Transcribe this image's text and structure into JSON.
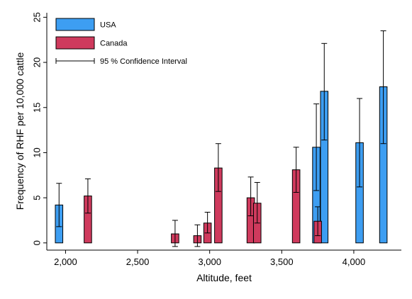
{
  "chart_data": {
    "type": "bar",
    "xlabel": "Altitude, feet",
    "ylabel": "Frequency of RHF per 10,000 cattle",
    "xlim": [
      1870,
      4330
    ],
    "ylim": [
      -0.8,
      25.5
    ],
    "xticks": [
      2000,
      2500,
      3000,
      3500,
      4000
    ],
    "xtick_labels": [
      "2,000",
      "2,500",
      "3,000",
      "3,500",
      "4,000"
    ],
    "yticks": [
      0,
      5,
      10,
      15,
      20,
      25
    ],
    "ytick_labels": [
      "0",
      "5",
      "10",
      "15",
      "20",
      "25"
    ],
    "bar_width": 52,
    "legend": {
      "placement": "top-left",
      "entries": [
        "USA",
        "Canada",
        "95 % Confidence Interval"
      ]
    },
    "series": [
      {
        "name": "USA",
        "color": "#3d9ef2",
        "points": [
          {
            "x": 1955,
            "value": 4.2,
            "ci": [
              1.8,
              6.6
            ]
          },
          {
            "x": 3740,
            "value": 10.6,
            "ci": [
              5.8,
              15.4
            ]
          },
          {
            "x": 3795,
            "value": 16.8,
            "ci": [
              11.4,
              22.1
            ]
          },
          {
            "x": 4040,
            "value": 11.1,
            "ci": [
              6.2,
              16.0
            ]
          },
          {
            "x": 4205,
            "value": 17.3,
            "ci": [
              11.0,
              23.5
            ]
          }
        ]
      },
      {
        "name": "Canada",
        "color": "#cf3a5d",
        "points": [
          {
            "x": 2155,
            "value": 5.2,
            "ci": [
              3.3,
              7.1
            ]
          },
          {
            "x": 2760,
            "value": 1.0,
            "ci": [
              -0.4,
              2.5
            ]
          },
          {
            "x": 2915,
            "value": 0.8,
            "ci": [
              -0.4,
              2.0
            ]
          },
          {
            "x": 2985,
            "value": 2.2,
            "ci": [
              1.1,
              3.4
            ]
          },
          {
            "x": 3060,
            "value": 8.3,
            "ci": [
              5.7,
              11.0
            ]
          },
          {
            "x": 3285,
            "value": 5.0,
            "ci": [
              3.0,
              7.3
            ]
          },
          {
            "x": 3330,
            "value": 4.4,
            "ci": [
              2.2,
              6.7
            ]
          },
          {
            "x": 3600,
            "value": 8.1,
            "ci": [
              5.6,
              10.6
            ]
          },
          {
            "x": 3750,
            "value": 2.4,
            "ci": [
              0.8,
              4.0
            ]
          }
        ]
      }
    ]
  }
}
